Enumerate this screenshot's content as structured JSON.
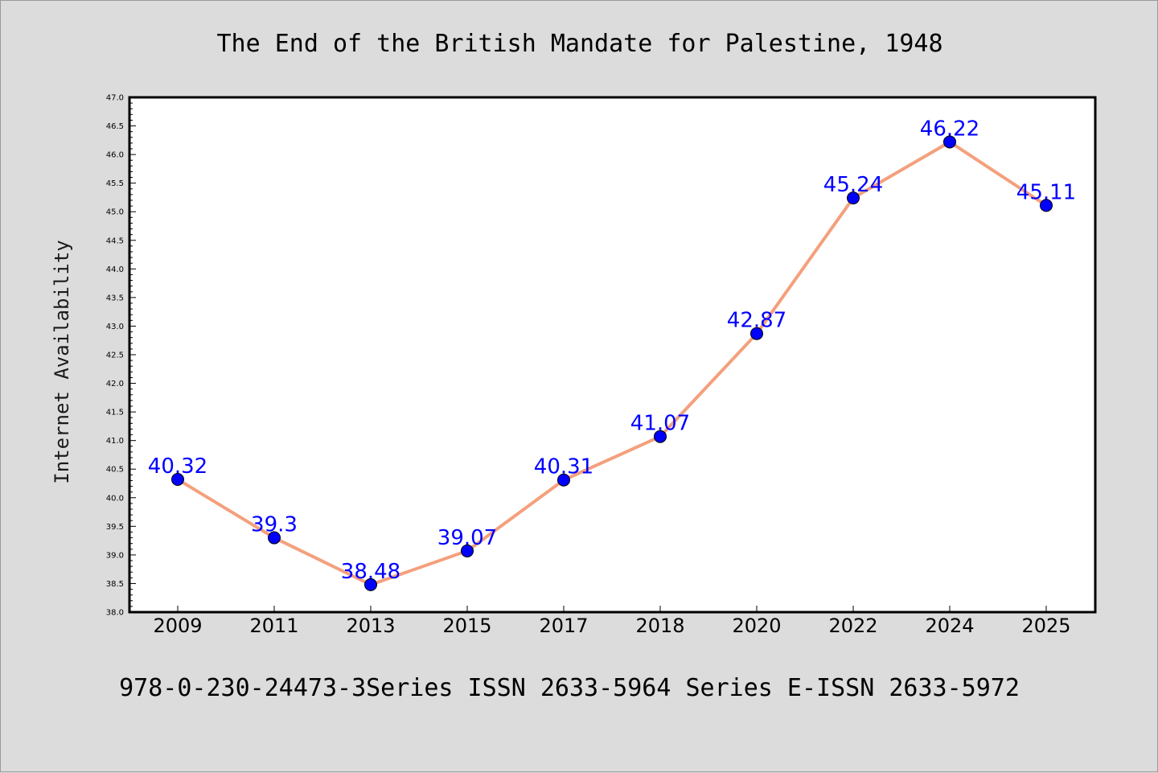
{
  "chart_data": {
    "type": "line",
    "title": "The End of the British Mandate for Palestine, 1948",
    "ylabel": "Internet Availability",
    "xlabel": "",
    "footer": "978-0-230-24473-3Series ISSN 2633-5964 Series E-ISSN 2633-5972",
    "categories": [
      "2009",
      "2011",
      "2013",
      "2015",
      "2017",
      "2018",
      "2020",
      "2022",
      "2024",
      "2025"
    ],
    "values": [
      40.32,
      39.3,
      38.48,
      39.07,
      40.31,
      41.07,
      42.87,
      45.24,
      46.22,
      45.11
    ],
    "value_labels": [
      "40.32",
      "39.3",
      "38.48",
      "39.07",
      "40.31",
      "41.07",
      "42.87",
      "45.24",
      "46.22",
      "45.11"
    ],
    "ylim": [
      38.0,
      47.0
    ],
    "yticks": [
      "38.0",
      "38.5",
      "39.0",
      "39.5",
      "40.0",
      "40.5",
      "41.0",
      "41.5",
      "42.0",
      "42.5",
      "43.0",
      "43.5",
      "44.0",
      "44.5",
      "45.0",
      "45.5",
      "46.0",
      "46.5",
      "47.0"
    ],
    "grid": false,
    "colors": {
      "line": "#f4a07d",
      "marker": "#0000ff",
      "label": "#0000ff",
      "background": "#dcdcdc",
      "plot_area": "#ffffff"
    }
  }
}
